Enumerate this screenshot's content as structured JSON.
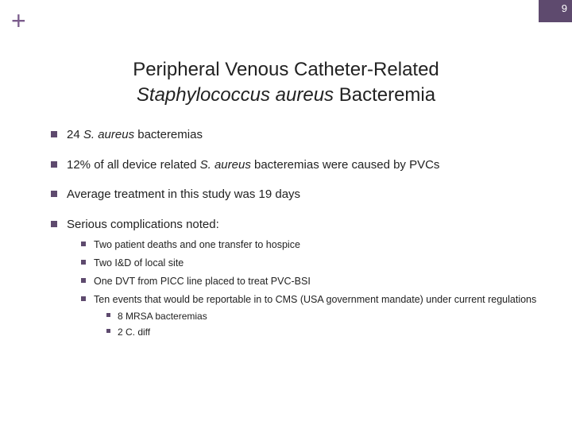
{
  "theme": {
    "accent": "#5e4a6e",
    "plus_color": "#7b5c8c",
    "background": "#ffffff",
    "text_color": "#222222"
  },
  "slide_number": "9",
  "plus_symbol": "+",
  "title": {
    "line1_plain": "Peripheral Venous Catheter-Related",
    "line2_italic": "Staphylococcus aureus",
    "line2_plain": " Bacteremia"
  },
  "bullets": [
    {
      "prefix": "24 ",
      "italic": "S. aureus",
      "suffix": " bacteremias"
    },
    {
      "prefix": "12% of all device related ",
      "italic": "S. aureus",
      "suffix": " bacteremias were caused by PVCs"
    },
    {
      "prefix": "Average treatment in this study was 19 days",
      "italic": "",
      "suffix": ""
    },
    {
      "prefix": "Serious complications noted:",
      "italic": "",
      "suffix": "",
      "children": [
        {
          "text": "Two patient deaths and one transfer to hospice"
        },
        {
          "text": "Two I&D of local site"
        },
        {
          "text": "One DVT from PICC line placed to treat PVC-BSI"
        },
        {
          "text": "Ten events that would be reportable in to CMS (USA government mandate) under current regulations",
          "children": [
            {
              "text": "8 MRSA bacteremias"
            },
            {
              "text": "2 C. diff"
            }
          ]
        }
      ]
    }
  ]
}
